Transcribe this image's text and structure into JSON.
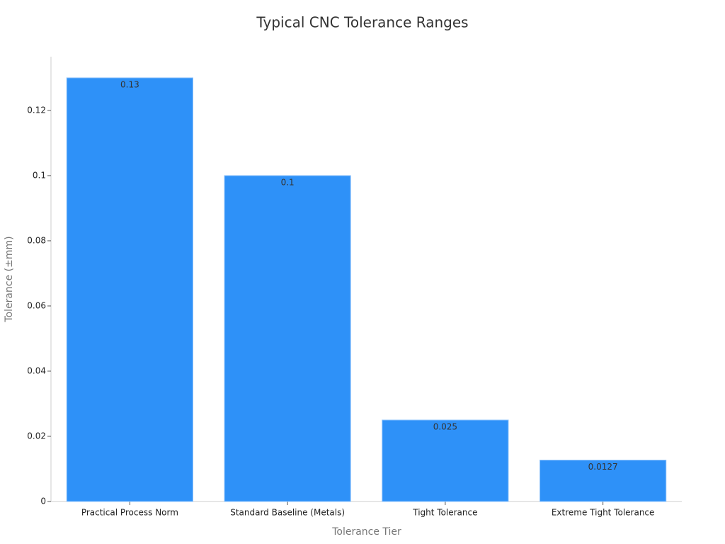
{
  "chart_data": {
    "type": "bar",
    "title": "Typical CNC Tolerance Ranges",
    "x_label": "Tolerance Tier",
    "y_label": "Tolerance (±mm)",
    "categories": [
      "Practical Process Norm",
      "Standard Baseline (Metals)",
      "Tight Tolerance",
      "Extreme Tight Tolerance"
    ],
    "values": [
      0.13,
      0.1,
      0.025,
      0.0127
    ],
    "color": "#2e91f8",
    "ylim": [
      0,
      0.1365
    ],
    "yticks": [
      0,
      0.02,
      0.04,
      0.06,
      0.08,
      0.1,
      0.12
    ],
    "grid": false
  }
}
